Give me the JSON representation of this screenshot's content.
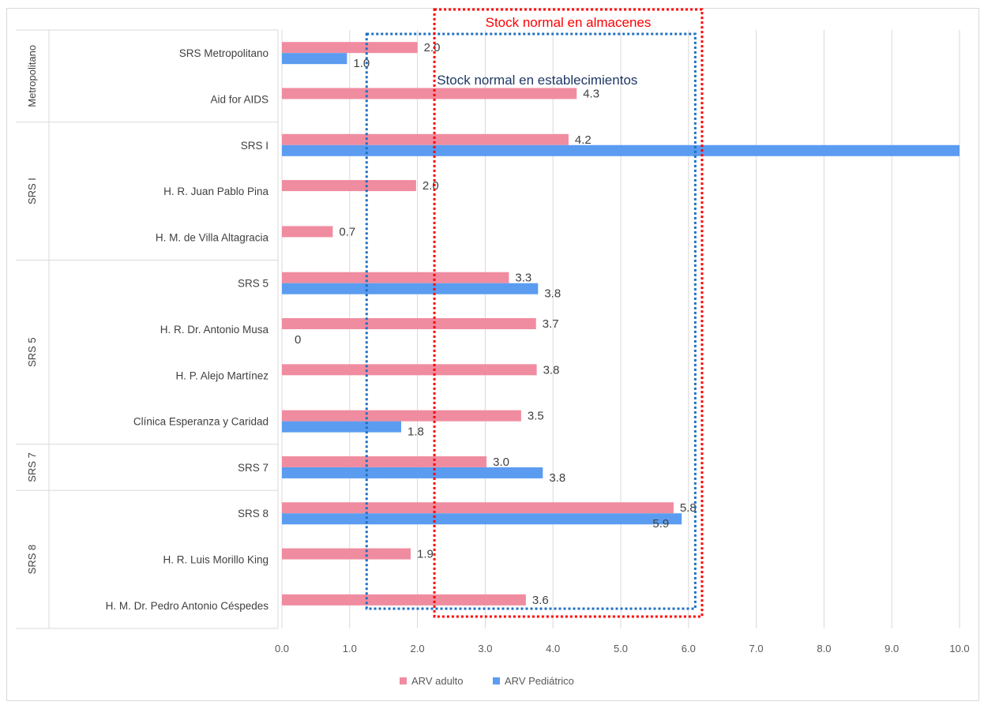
{
  "chart_data": {
    "type": "bar",
    "orientation": "horizontal",
    "groups": [
      {
        "name": "Metropolitano",
        "categories": [
          "SRS Metropolitano",
          "Aid for AIDS"
        ]
      },
      {
        "name": "SRS I",
        "categories": [
          "SRS I",
          "H. R. Juan Pablo Pina",
          "H. M. de Villa Altagracia"
        ]
      },
      {
        "name": "SRS 5",
        "categories": [
          "SRS 5",
          "H. R. Dr. Antonio Musa",
          "H. P. Alejo Martínez",
          "Clínica Esperanza y Caridad"
        ]
      },
      {
        "name": "SRS 7",
        "categories": [
          "SRS 7"
        ]
      },
      {
        "name": "SRS 8",
        "categories": [
          "SRS 8",
          "H. R. Luis Morillo King",
          "H. M. Dr. Pedro Antonio Céspedes"
        ]
      }
    ],
    "categories": [
      "SRS Metropolitano",
      "Aid for AIDS",
      "SRS I",
      "H. R. Juan Pablo Pina",
      "H. M. de Villa Altagracia",
      "SRS 5",
      "H. R. Dr. Antonio Musa",
      "H. P. Alejo Martínez",
      "Clínica Esperanza y Caridad",
      "SRS 7",
      "SRS 8",
      "H. R. Luis Morillo King",
      "H. M. Dr. Pedro Antonio Céspedes"
    ],
    "series": [
      {
        "name": "ARV adulto",
        "color": "#f08ca0",
        "values": [
          2.0,
          4.35,
          4.23,
          1.98,
          0.75,
          3.35,
          3.75,
          3.76,
          3.53,
          3.02,
          5.78,
          1.9,
          3.6
        ],
        "labels": [
          "2.0",
          "4.3",
          "4.2",
          "2.0",
          "0.7",
          "3.3",
          "3.7",
          "3.8",
          "3.5",
          "3.0",
          "5.8",
          "1.9",
          "3.6"
        ]
      },
      {
        "name": "ARV Pediátrico",
        "color": "#5b9cf0",
        "values": [
          0.96,
          null,
          10.0,
          null,
          null,
          3.78,
          0,
          null,
          1.76,
          3.85,
          5.9,
          null,
          null
        ],
        "labels": [
          "1.0",
          "",
          "",
          "",
          "",
          "3.8",
          "0",
          "",
          "1.8",
          "3.8",
          "5.9",
          "",
          ""
        ]
      }
    ],
    "xlim": [
      0,
      10
    ],
    "xticks": [
      "0.0",
      "1.0",
      "2.0",
      "3.0",
      "4.0",
      "5.0",
      "6.0",
      "7.0",
      "8.0",
      "9.0",
      "10.0"
    ],
    "grid": true,
    "legend": "bottom",
    "annotations": [
      {
        "text": "Stock normal en almacenes",
        "color": "#ff0000",
        "x_range": [
          2.25,
          6.2
        ]
      },
      {
        "text": "Stock normal en establecimientos",
        "color": "#1f3864",
        "x_range": [
          1.25,
          6.1
        ]
      }
    ]
  }
}
